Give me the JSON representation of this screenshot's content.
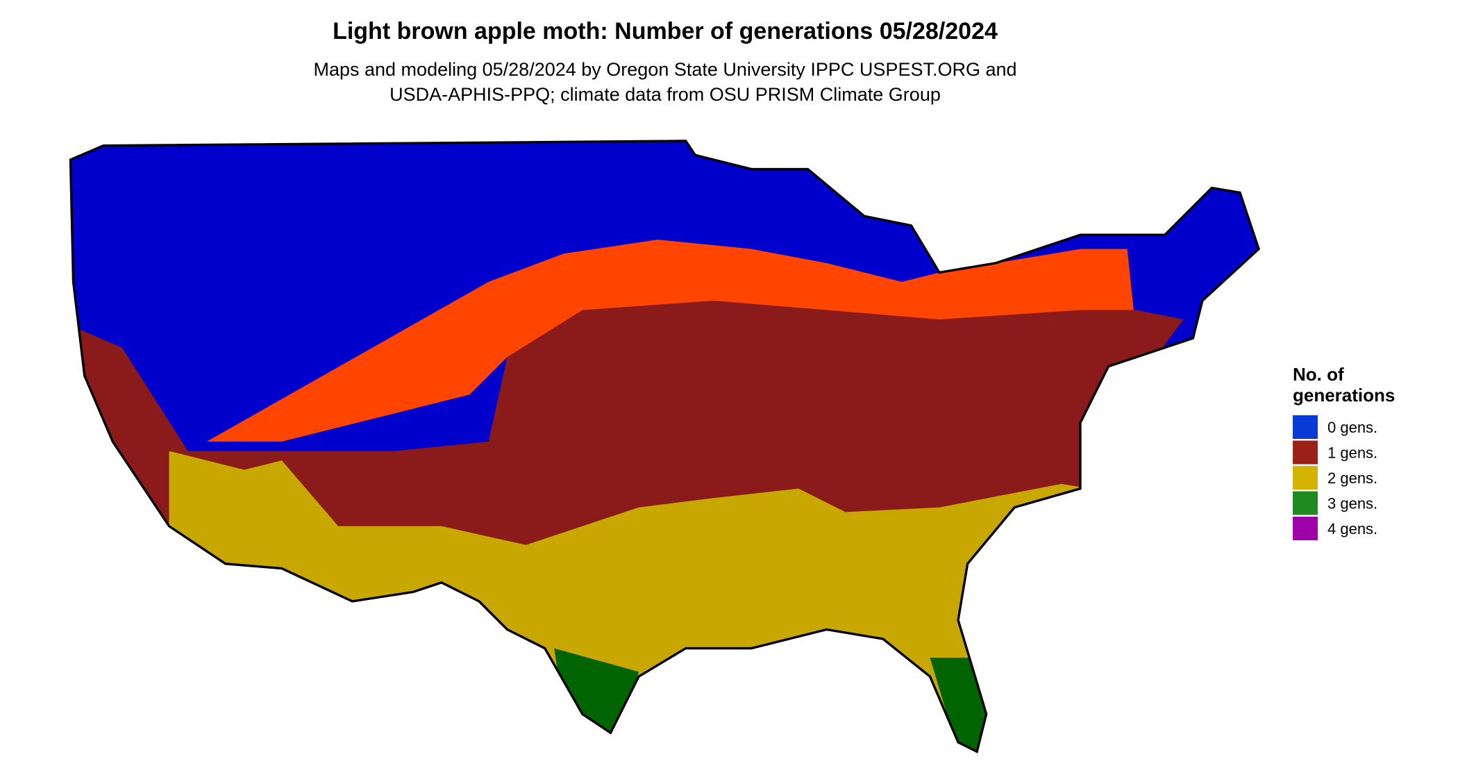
{
  "header": {
    "title": "Light brown apple moth: Number of generations 05/28/2024",
    "subtitle": [
      "Maps and modeling 05/28/2024 by Oregon State University IPPC USPEST.ORG and",
      "USDA-APHIS-PPQ; climate data from OSU PRISM Climate Group"
    ]
  },
  "legend": {
    "title": [
      "No. of",
      "generations"
    ],
    "items": [
      {
        "label": "0 gens.",
        "color": "#0a3ad6"
      },
      {
        "label": "1 gens.",
        "color": "#9b2116"
      },
      {
        "label": "2 gens.",
        "color": "#d4b400"
      },
      {
        "label": "3 gens.",
        "color": "#1f8a1f"
      },
      {
        "label": "4 gens.",
        "color": "#a000a8"
      }
    ]
  }
}
